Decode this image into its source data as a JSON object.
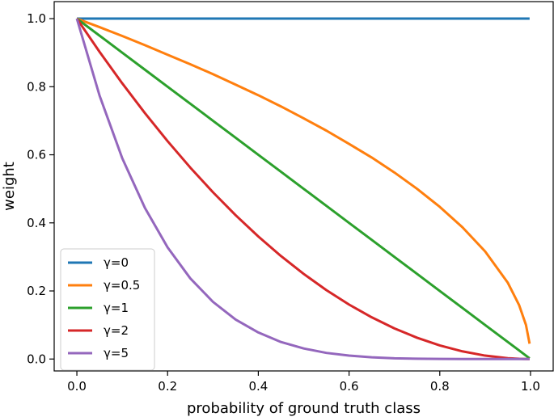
{
  "chart_data": {
    "type": "line",
    "title": "",
    "xlabel": "probability of ground truth class",
    "ylabel": "weight",
    "xlim": [
      -0.05,
      1.05
    ],
    "ylim": [
      -0.035,
      1.05
    ],
    "xticks": [
      0.0,
      0.2,
      0.4,
      0.6,
      0.8,
      1.0
    ],
    "xtick_labels": [
      "0.0",
      "0.2",
      "0.4",
      "0.6",
      "0.8",
      "1.0"
    ],
    "yticks": [
      0.0,
      0.2,
      0.4,
      0.6,
      0.8,
      1.0
    ],
    "ytick_labels": [
      "0.0",
      "0.2",
      "0.4",
      "0.6",
      "0.8",
      "1.0"
    ],
    "grid": false,
    "legend_position": "lower-left",
    "x": [
      0.0,
      0.05,
      0.1,
      0.15,
      0.2,
      0.25,
      0.3,
      0.35,
      0.4,
      0.45,
      0.5,
      0.55,
      0.6,
      0.65,
      0.7,
      0.75,
      0.8,
      0.85,
      0.9,
      0.95,
      0.975,
      0.99,
      0.998
    ],
    "series": [
      {
        "name": "γ=0",
        "color": "#1f77b4",
        "values": [
          1.0,
          1.0,
          1.0,
          1.0,
          1.0,
          1.0,
          1.0,
          1.0,
          1.0,
          1.0,
          1.0,
          1.0,
          1.0,
          1.0,
          1.0,
          1.0,
          1.0,
          1.0,
          1.0,
          1.0,
          1.0,
          1.0,
          1.0
        ]
      },
      {
        "name": "γ=0.5",
        "color": "#ff7f0e",
        "values": [
          1.0,
          0.975,
          0.949,
          0.922,
          0.894,
          0.866,
          0.837,
          0.806,
          0.775,
          0.742,
          0.707,
          0.671,
          0.632,
          0.592,
          0.548,
          0.5,
          0.447,
          0.387,
          0.316,
          0.224,
          0.158,
          0.1,
          0.045
        ]
      },
      {
        "name": "γ=1",
        "color": "#2ca02c",
        "values": [
          1.0,
          0.95,
          0.9,
          0.85,
          0.8,
          0.75,
          0.7,
          0.65,
          0.6,
          0.55,
          0.5,
          0.45,
          0.4,
          0.35,
          0.3,
          0.25,
          0.2,
          0.15,
          0.1,
          0.05,
          0.025,
          0.01,
          0.002
        ]
      },
      {
        "name": "γ=2",
        "color": "#d62728",
        "values": [
          1.0,
          0.9025,
          0.81,
          0.7225,
          0.64,
          0.5625,
          0.49,
          0.4225,
          0.36,
          0.3025,
          0.25,
          0.2025,
          0.16,
          0.1225,
          0.09,
          0.0625,
          0.04,
          0.0225,
          0.01,
          0.0025,
          0.0006,
          0.0001,
          0.0
        ]
      },
      {
        "name": "γ=5",
        "color": "#9467bd",
        "values": [
          1.0,
          0.774,
          0.59,
          0.444,
          0.328,
          0.237,
          0.168,
          0.116,
          0.078,
          0.05,
          0.031,
          0.018,
          0.01,
          0.005,
          0.002,
          0.001,
          0.0003,
          0.0001,
          0.0,
          0.0,
          0.0,
          0.0,
          0.0
        ]
      }
    ]
  }
}
